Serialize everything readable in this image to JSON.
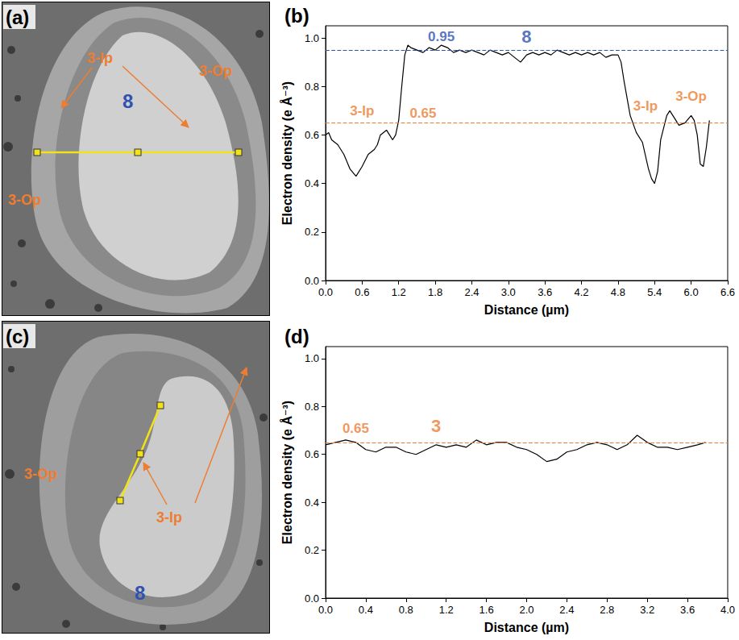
{
  "chart_data": [
    {
      "type": "line",
      "title": "(b)",
      "x_label": "Distance (µm)",
      "y_label": "Electron density (e Å⁻³)",
      "x": [
        0.0,
        0.05,
        0.1,
        0.2,
        0.3,
        0.4,
        0.5,
        0.6,
        0.7,
        0.8,
        0.85,
        0.9,
        1.0,
        1.05,
        1.1,
        1.15,
        1.2,
        1.25,
        1.3,
        1.35,
        1.4,
        1.5,
        1.6,
        1.7,
        1.8,
        1.9,
        2.0,
        2.1,
        2.2,
        2.3,
        2.4,
        2.5,
        2.6,
        2.7,
        2.8,
        2.9,
        3.0,
        3.1,
        3.2,
        3.3,
        3.4,
        3.5,
        3.6,
        3.7,
        3.8,
        3.9,
        4.0,
        4.1,
        4.2,
        4.3,
        4.4,
        4.5,
        4.6,
        4.7,
        4.8,
        4.85,
        4.9,
        5.0,
        5.1,
        5.2,
        5.3,
        5.35,
        5.4,
        5.45,
        5.5,
        5.6,
        5.65,
        5.7,
        5.8,
        5.9,
        6.0,
        6.05,
        6.1,
        6.15,
        6.2,
        6.25,
        6.3
      ],
      "values": [
        0.6,
        0.61,
        0.58,
        0.56,
        0.52,
        0.46,
        0.43,
        0.47,
        0.52,
        0.54,
        0.56,
        0.6,
        0.62,
        0.6,
        0.58,
        0.6,
        0.66,
        0.8,
        0.93,
        0.97,
        0.96,
        0.95,
        0.94,
        0.96,
        0.95,
        0.97,
        0.96,
        0.94,
        0.95,
        0.94,
        0.95,
        0.94,
        0.93,
        0.95,
        0.94,
        0.93,
        0.94,
        0.92,
        0.9,
        0.93,
        0.94,
        0.93,
        0.94,
        0.93,
        0.95,
        0.94,
        0.93,
        0.94,
        0.93,
        0.94,
        0.93,
        0.94,
        0.92,
        0.93,
        0.93,
        0.9,
        0.82,
        0.68,
        0.61,
        0.57,
        0.46,
        0.42,
        0.4,
        0.45,
        0.58,
        0.68,
        0.7,
        0.68,
        0.64,
        0.65,
        0.68,
        0.66,
        0.6,
        0.48,
        0.47,
        0.55,
        0.66
      ],
      "color": "#000000",
      "xlim": [
        0,
        6.6
      ],
      "ylim": [
        0,
        1.05
      ],
      "xticks": [
        {
          "value": 0,
          "label": "0.0"
        },
        0.6,
        1.2,
        1.8,
        2.4,
        {
          "value": 3,
          "label": "3.0"
        },
        3.6,
        4.2,
        4.8,
        5.4,
        {
          "value": 6,
          "label": "6.0"
        },
        6.6
      ],
      "yticks": [
        {
          "value": 0,
          "label": "0.0"
        },
        0.2,
        0.4,
        0.6,
        0.8,
        {
          "value": 1,
          "label": "1.0"
        }
      ],
      "grid": false,
      "reference_lines": [
        {
          "y": 0.95,
          "color": "#2f52b0"
        },
        {
          "y": 0.65,
          "color": "#ed7d31"
        }
      ],
      "annotations": [
        {
          "text": "0.95",
          "x": 1.9,
          "y": 1.005,
          "color": "#2f52b0"
        },
        {
          "text": "8",
          "x": 3.3,
          "y": 1.005,
          "color": "#2f52b0"
        },
        {
          "text": "3-Ip",
          "x": 0.6,
          "y": 0.7,
          "color": "#ed7d31"
        },
        {
          "text": "0.65",
          "x": 1.6,
          "y": 0.69,
          "color": "#ed7d31"
        },
        {
          "text": "3-Ip",
          "x": 5.25,
          "y": 0.72,
          "color": "#ed7d31"
        },
        {
          "text": "3-Op",
          "x": 6.0,
          "y": 0.76,
          "color": "#ed7d31"
        }
      ]
    },
    {
      "type": "line",
      "title": "(d)",
      "x_label": "Distance (µm)",
      "y_label": "Electron density (e Å⁻³)",
      "x": [
        0.0,
        0.1,
        0.2,
        0.3,
        0.4,
        0.5,
        0.6,
        0.7,
        0.8,
        0.9,
        1.0,
        1.1,
        1.2,
        1.3,
        1.4,
        1.5,
        1.6,
        1.7,
        1.8,
        1.9,
        2.0,
        2.1,
        2.2,
        2.3,
        2.4,
        2.5,
        2.6,
        2.7,
        2.8,
        2.9,
        3.0,
        3.1,
        3.2,
        3.3,
        3.4,
        3.5,
        3.6,
        3.7,
        3.78
      ],
      "values": [
        0.64,
        0.65,
        0.66,
        0.65,
        0.62,
        0.61,
        0.63,
        0.63,
        0.61,
        0.6,
        0.62,
        0.64,
        0.63,
        0.64,
        0.63,
        0.66,
        0.64,
        0.65,
        0.65,
        0.63,
        0.62,
        0.6,
        0.57,
        0.58,
        0.61,
        0.62,
        0.64,
        0.65,
        0.64,
        0.62,
        0.64,
        0.68,
        0.65,
        0.63,
        0.63,
        0.62,
        0.63,
        0.64,
        0.65
      ],
      "color": "#000000",
      "xlim": [
        0,
        4.0
      ],
      "ylim": [
        0,
        1.05
      ],
      "xticks": [
        {
          "value": 0,
          "label": "0.0"
        },
        0.4,
        0.8,
        1.2,
        1.6,
        {
          "value": 2,
          "label": "2.0"
        },
        2.4,
        2.8,
        3.2,
        3.6,
        {
          "value": 4,
          "label": "4.0"
        }
      ],
      "yticks": [
        {
          "value": 0,
          "label": "0.0"
        },
        0.2,
        0.4,
        0.6,
        0.8,
        {
          "value": 1,
          "label": "1.0"
        }
      ],
      "grid": false,
      "reference_lines": [
        {
          "y": 0.65,
          "color": "#ed7d31"
        }
      ],
      "annotations": [
        {
          "text": "0.65",
          "x": 0.3,
          "y": 0.71,
          "color": "#ed7d31"
        },
        {
          "text": "3",
          "x": 1.1,
          "y": 0.72,
          "color": "#ed7d31"
        }
      ]
    }
  ],
  "images": [
    {
      "letter": "(a)",
      "labels": [
        {
          "text": "3-Ip",
          "color": "#ed7d31"
        },
        {
          "text": "8",
          "color": "#2f52b0"
        },
        {
          "text": "3-Op",
          "color": "#ed7d31"
        },
        {
          "text": "3-Op",
          "color": "#ed7d31"
        }
      ]
    },
    {
      "letter": "(c)",
      "labels": [
        {
          "text": "3-Op",
          "color": "#ed7d31"
        },
        {
          "text": "3-Ip",
          "color": "#ed7d31"
        },
        {
          "text": "8",
          "color": "#2f52b0"
        }
      ]
    }
  ]
}
